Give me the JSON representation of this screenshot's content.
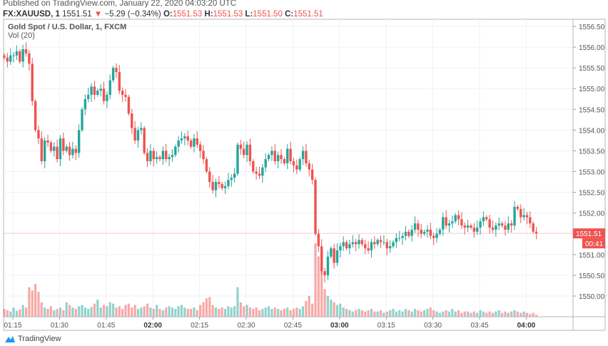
{
  "header": {
    "published": "Published on TradingView.com, January 22, 2020 04:03:20 UTC",
    "symbol": "FX:XAUUSD, 1",
    "last": "1551.51",
    "change": "−5.29 (−0.34%)",
    "o_label": "O:",
    "o": "1551.53",
    "h_label": "H:",
    "h": "1551.53",
    "l_label": "L:",
    "l": "1551.50",
    "c_label": "C:",
    "c": "1551.51"
  },
  "legend": {
    "title": "Gold Spot / U.S. Dollar, 1, FXCM",
    "volume": "Vol (20)"
  },
  "price_badge": "1551.51",
  "countdown_badge": "00:41",
  "footer": {
    "brand": "TradingView"
  },
  "colors": {
    "up": "#26a69a",
    "down": "#ef5350",
    "grid": "#eef2f6",
    "axis_text": "#555555"
  },
  "chart_data": {
    "type": "candlestick",
    "start_time": "01:12",
    "interval_minutes": 1,
    "y_ticks": [
      "1556.50",
      "1556.00",
      "1555.50",
      "1555.00",
      "1554.50",
      "1554.00",
      "1553.50",
      "1553.00",
      "1552.50",
      "1552.00",
      "1551.00",
      "1550.50",
      "1550.00"
    ],
    "x_ticks": [
      {
        "label": "01:15",
        "bold": false
      },
      {
        "label": "01:30",
        "bold": false
      },
      {
        "label": "01:45",
        "bold": false
      },
      {
        "label": "02:00",
        "bold": true
      },
      {
        "label": "02:15",
        "bold": false
      },
      {
        "label": "02:30",
        "bold": false
      },
      {
        "label": "02:45",
        "bold": false
      },
      {
        "label": "03:00",
        "bold": true
      },
      {
        "label": "03:15",
        "bold": false
      },
      {
        "label": "03:30",
        "bold": false
      },
      {
        "label": "03:45",
        "bold": false
      },
      {
        "label": "04:00",
        "bold": true
      }
    ],
    "ylim": [
      1549.6,
      1556.67
    ],
    "last_price": 1551.51,
    "close": [
      1555.75,
      1555.65,
      1555.8,
      1555.8,
      1555.9,
      1555.65,
      1555.95,
      1555.85,
      1555.6,
      1554.7,
      1554.0,
      1553.8,
      1553.25,
      1553.75,
      1553.7,
      1553.5,
      1553.6,
      1553.3,
      1553.8,
      1553.5,
      1553.6,
      1553.4,
      1553.55,
      1553.45,
      1554.0,
      1554.5,
      1554.75,
      1554.85,
      1555.05,
      1554.85,
      1554.95,
      1555.0,
      1554.7,
      1554.85,
      1555.2,
      1555.5,
      1555.4,
      1554.95,
      1554.85,
      1554.8,
      1554.4,
      1554.05,
      1553.75,
      1554.0,
      1554.05,
      1553.45,
      1553.25,
      1553.5,
      1553.3,
      1553.35,
      1553.3,
      1553.5,
      1553.3,
      1553.35,
      1553.4,
      1553.6,
      1553.75,
      1553.8,
      1553.85,
      1553.75,
      1553.6,
      1553.8,
      1553.65,
      1553.5,
      1553.3,
      1553.0,
      1552.75,
      1552.55,
      1552.75,
      1552.7,
      1552.6,
      1552.65,
      1552.8,
      1552.85,
      1552.95,
      1553.65,
      1553.55,
      1553.4,
      1553.65,
      1553.25,
      1553.0,
      1552.95,
      1552.9,
      1553.1,
      1553.3,
      1553.4,
      1553.5,
      1553.25,
      1553.4,
      1553.3,
      1553.2,
      1553.55,
      1553.25,
      1553.15,
      1553.05,
      1553.3,
      1553.5,
      1553.2,
      1553.05,
      1552.8,
      1551.5,
      1551.2,
      1550.6,
      1550.5,
      1550.95,
      1551.15,
      1550.8,
      1551.1,
      1551.2,
      1551.3,
      1551.15,
      1551.25,
      1551.3,
      1551.25,
      1551.35,
      1551.25,
      1551.15,
      1551.1,
      1551.3,
      1551.25,
      1551.35,
      1551.3,
      1551.3,
      1551.15,
      1551.2,
      1551.3,
      1551.4,
      1551.4,
      1551.45,
      1551.55,
      1551.45,
      1551.6,
      1551.75,
      1551.6,
      1551.5,
      1551.55,
      1551.6,
      1551.45,
      1551.4,
      1551.5,
      1551.6,
      1551.9,
      1551.7,
      1551.75,
      1551.8,
      1551.95,
      1551.85,
      1551.7,
      1551.65,
      1551.7,
      1551.65,
      1551.55,
      1551.65,
      1551.8,
      1551.9,
      1551.85,
      1551.65,
      1551.6,
      1551.7,
      1551.75,
      1551.7,
      1551.6,
      1551.75,
      1551.7,
      1552.15,
      1552.1,
      1551.9,
      1551.95,
      1551.9,
      1551.75,
      1551.55,
      1551.51
    ],
    "volume": [
      12,
      10,
      8,
      14,
      9,
      11,
      18,
      14,
      45,
      40,
      50,
      38,
      22,
      14,
      12,
      16,
      10,
      12,
      14,
      10,
      22,
      18,
      14,
      12,
      16,
      18,
      14,
      12,
      15,
      20,
      26,
      14,
      18,
      16,
      22,
      20,
      14,
      16,
      12,
      18,
      20,
      14,
      18,
      12,
      14,
      16,
      20,
      14,
      12,
      18,
      12,
      10,
      14,
      16,
      14,
      12,
      16,
      18,
      14,
      12,
      12,
      14,
      10,
      18,
      22,
      28,
      30,
      18,
      14,
      12,
      14,
      12,
      16,
      14,
      16,
      45,
      22,
      16,
      18,
      14,
      12,
      14,
      10,
      12,
      14,
      16,
      12,
      14,
      12,
      10,
      12,
      14,
      10,
      12,
      14,
      12,
      16,
      24,
      32,
      20,
      112,
      92,
      70,
      42,
      32,
      26,
      22,
      18,
      20,
      14,
      12,
      10,
      8,
      10,
      12,
      10,
      8,
      10,
      12,
      8,
      8,
      10,
      6,
      8,
      10,
      12,
      8,
      10,
      8,
      12,
      10,
      8,
      12,
      10,
      8,
      10,
      12,
      14,
      10,
      8,
      6,
      8,
      10,
      8,
      12,
      8,
      10,
      6,
      8,
      8,
      6,
      8,
      6,
      10,
      8,
      6,
      8,
      6,
      8,
      10,
      6,
      8,
      6,
      8,
      10,
      8,
      6,
      8,
      6,
      4,
      6,
      3
    ]
  }
}
